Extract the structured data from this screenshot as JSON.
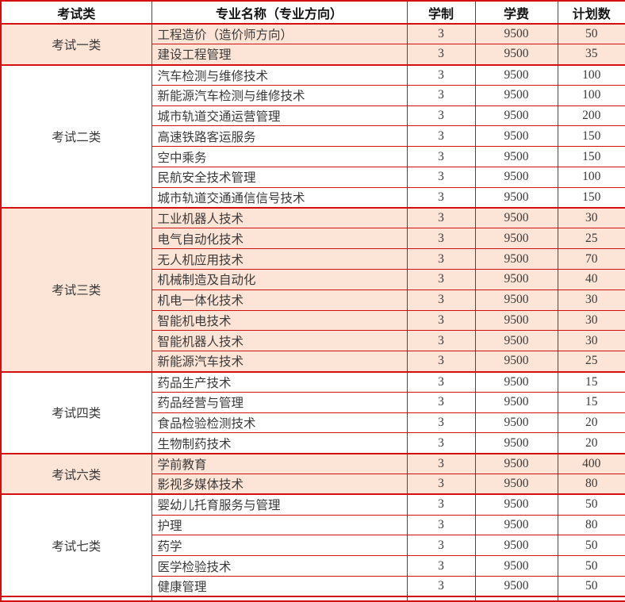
{
  "table": {
    "header": [
      "考试类",
      "专业名称（专业方向）",
      "学制",
      "学费",
      "计划数"
    ],
    "row_fields": [
      "major",
      "years",
      "tuition",
      "plan"
    ],
    "groups": [
      {
        "category": "考试一类",
        "highlight": true,
        "rows": [
          {
            "major": "工程造价（造价师方向）",
            "years": "3",
            "tuition": "9500",
            "plan": "50"
          },
          {
            "major": "建设工程管理",
            "years": "3",
            "tuition": "9500",
            "plan": "35"
          }
        ]
      },
      {
        "category": "考试二类",
        "highlight": false,
        "rows": [
          {
            "major": "汽车检测与维修技术",
            "years": "3",
            "tuition": "9500",
            "plan": "100"
          },
          {
            "major": "新能源汽车检测与维修技术",
            "years": "3",
            "tuition": "9500",
            "plan": "100"
          },
          {
            "major": "城市轨道交通运营管理",
            "years": "3",
            "tuition": "9500",
            "plan": "200"
          },
          {
            "major": "高速铁路客运服务",
            "years": "3",
            "tuition": "9500",
            "plan": "150"
          },
          {
            "major": "空中乘务",
            "years": "3",
            "tuition": "9500",
            "plan": "150"
          },
          {
            "major": "民航安全技术管理",
            "years": "3",
            "tuition": "9500",
            "plan": "100"
          },
          {
            "major": "城市轨道交通通信信号技术",
            "years": "3",
            "tuition": "9500",
            "plan": "150"
          }
        ]
      },
      {
        "category": "考试三类",
        "highlight": true,
        "rows": [
          {
            "major": "工业机器人技术",
            "years": "3",
            "tuition": "9500",
            "plan": "30"
          },
          {
            "major": "电气自动化技术",
            "years": "3",
            "tuition": "9500",
            "plan": "25"
          },
          {
            "major": "无人机应用技术",
            "years": "3",
            "tuition": "9500",
            "plan": "70"
          },
          {
            "major": "机械制造及自动化",
            "years": "3",
            "tuition": "9500",
            "plan": "40"
          },
          {
            "major": "机电一体化技术",
            "years": "3",
            "tuition": "9500",
            "plan": "30"
          },
          {
            "major": "智能机电技术",
            "years": "3",
            "tuition": "9500",
            "plan": "30"
          },
          {
            "major": "智能机器人技术",
            "years": "3",
            "tuition": "9500",
            "plan": "30"
          },
          {
            "major": "新能源汽车技术",
            "years": "3",
            "tuition": "9500",
            "plan": "25"
          }
        ]
      },
      {
        "category": "考试四类",
        "highlight": false,
        "rows": [
          {
            "major": "药品生产技术",
            "years": "3",
            "tuition": "9500",
            "plan": "15"
          },
          {
            "major": "药品经营与管理",
            "years": "3",
            "tuition": "9500",
            "plan": "15"
          },
          {
            "major": "食品检验检测技术",
            "years": "3",
            "tuition": "9500",
            "plan": "20"
          },
          {
            "major": "生物制药技术",
            "years": "3",
            "tuition": "9500",
            "plan": "20"
          }
        ]
      },
      {
        "category": "考试六类",
        "highlight": true,
        "rows": [
          {
            "major": "学前教育",
            "years": "3",
            "tuition": "9500",
            "plan": "400"
          },
          {
            "major": "影视多媒体技术",
            "years": "3",
            "tuition": "9500",
            "plan": "80"
          }
        ]
      },
      {
        "category": "考试七类",
        "highlight": false,
        "rows": [
          {
            "major": "婴幼儿托育服务与管理",
            "years": "3",
            "tuition": "9500",
            "plan": "50"
          },
          {
            "major": "护理",
            "years": "3",
            "tuition": "9500",
            "plan": "80"
          },
          {
            "major": "药学",
            "years": "3",
            "tuition": "9500",
            "plan": "50"
          },
          {
            "major": "医学检验技术",
            "years": "3",
            "tuition": "9500",
            "plan": "50"
          },
          {
            "major": "健康管理",
            "years": "3",
            "tuition": "9500",
            "plan": "50"
          }
        ]
      }
    ],
    "partial_row_visible": true,
    "colors": {
      "border_red": "#d40f0f",
      "highlight_bg": "#fce4d6",
      "header_text": "#141414",
      "body_text": "#3a3a3a"
    }
  }
}
